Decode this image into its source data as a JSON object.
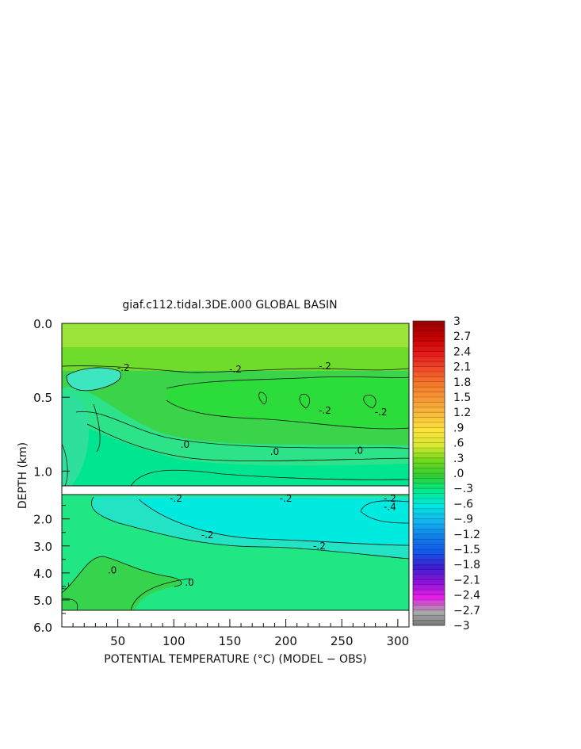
{
  "chart_data": {
    "type": "heatmap",
    "title": "giaf.c112.tidal.3DE.000 GLOBAL BASIN",
    "xlabel": "POTENTIAL TEMPERATURE (°C) (MODEL − OBS)",
    "ylabel": "DEPTH (km)",
    "xlim": [
      0,
      310
    ],
    "x_ticks": [
      50,
      100,
      150,
      200,
      250,
      300
    ],
    "upper_panel": {
      "ylim": [
        0.0,
        1.1
      ],
      "y_ticks": [
        "0.0",
        "0.5",
        "1.0"
      ]
    },
    "lower_panel": {
      "ylim": [
        1.1,
        6.0
      ],
      "y_ticks": [
        "2.0",
        "3.0",
        "4.0",
        "5.0",
        "6.0"
      ]
    },
    "contour_labels": [
      {
        "panel": "upper",
        "x": 55,
        "y": 0.3,
        "text": "-.2"
      },
      {
        "panel": "upper",
        "x": 155,
        "y": 0.31,
        "text": "-.2"
      },
      {
        "panel": "upper",
        "x": 235,
        "y": 0.29,
        "text": "-.2"
      },
      {
        "panel": "upper",
        "x": 235,
        "y": 0.59,
        "text": "-.2"
      },
      {
        "panel": "upper",
        "x": 285,
        "y": 0.6,
        "text": "-.2"
      },
      {
        "panel": "upper",
        "x": 110,
        "y": 0.82,
        "text": ".0"
      },
      {
        "panel": "upper",
        "x": 190,
        "y": 0.87,
        "text": ".0"
      },
      {
        "panel": "upper",
        "x": 265,
        "y": 0.86,
        "text": ".0"
      },
      {
        "panel": "lower",
        "x": 102,
        "y": 1.25,
        "text": "-.2"
      },
      {
        "panel": "lower",
        "x": 200,
        "y": 1.25,
        "text": "-.2"
      },
      {
        "panel": "lower",
        "x": 293,
        "y": 1.25,
        "text": "-.2"
      },
      {
        "panel": "lower",
        "x": 293,
        "y": 1.55,
        "text": "-.4"
      },
      {
        "panel": "lower",
        "x": 130,
        "y": 2.6,
        "text": "-.2"
      },
      {
        "panel": "lower",
        "x": 230,
        "y": 3.0,
        "text": "-.2"
      },
      {
        "panel": "lower",
        "x": 45,
        "y": 3.9,
        "text": ".0"
      },
      {
        "panel": "lower",
        "x": 114,
        "y": 4.35,
        "text": ".0"
      }
    ],
    "colorbar": {
      "labels": [
        "3",
        "2.7",
        "2.4",
        "2.1",
        "1.8",
        "1.5",
        "1.2",
        ".9",
        ".6",
        ".3",
        ".0",
        "−.3",
        "−.6",
        "−.9",
        "−1.2",
        "−1.5",
        "−1.8",
        "−2.1",
        "−2.4",
        "−2.7",
        "−3"
      ],
      "colors": [
        "#a00000",
        "#c80000",
        "#e51c1c",
        "#f04a28",
        "#f47a2a",
        "#f59a34",
        "#f8bd3a",
        "#fde23c",
        "#d9e830",
        "#72d81c",
        "#32cd32",
        "#00ea8c",
        "#00e6e0",
        "#12b4f0",
        "#1080ea",
        "#1458ea",
        "#3c1ed0",
        "#8c14d8",
        "#e61ee6",
        "#a8a8a8",
        "#6e6e6e"
      ]
    }
  }
}
